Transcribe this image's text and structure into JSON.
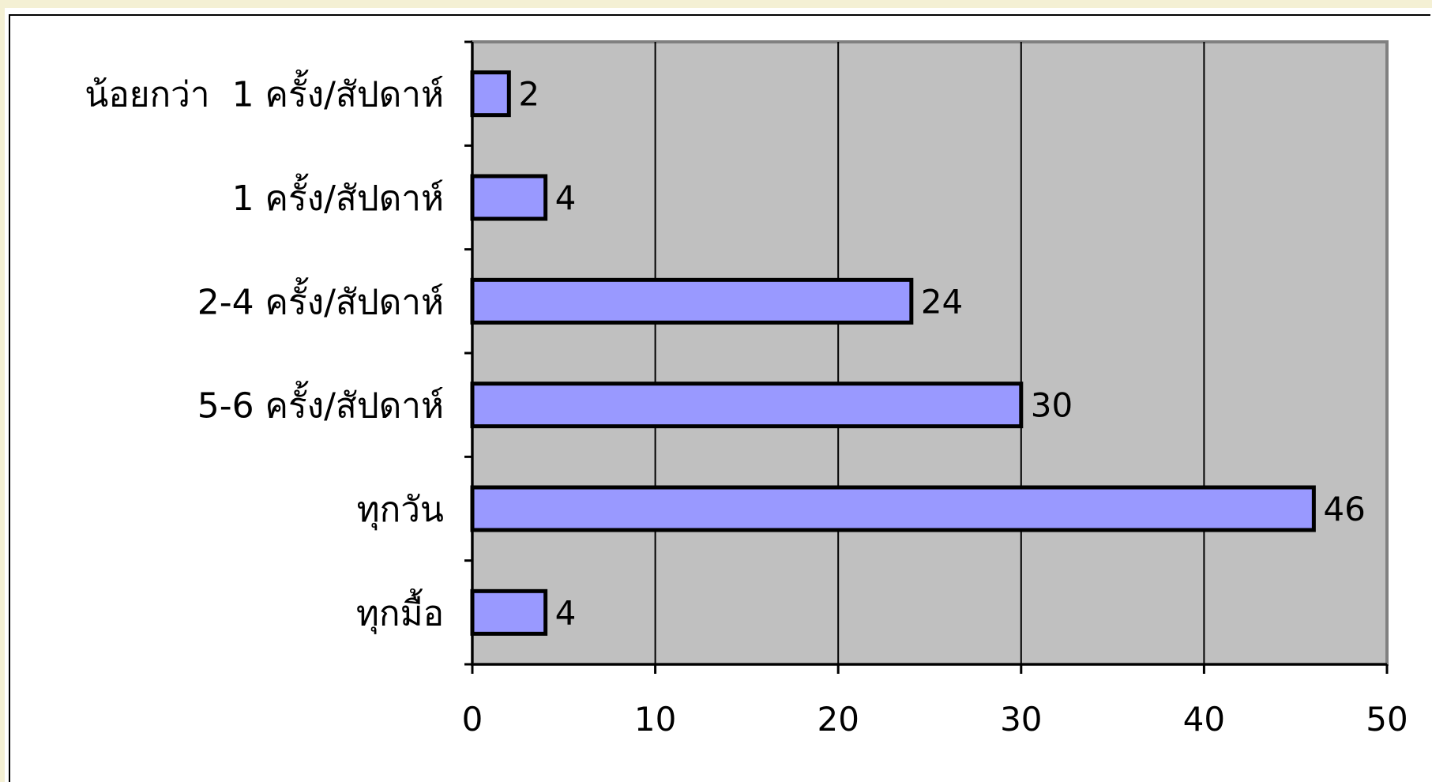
{
  "chart_data": {
    "type": "bar",
    "orientation": "horizontal",
    "categories": [
      "น้อยกว่า  1 ครั้ง/สัปดาห์",
      "1 ครั้ง/สัปดาห์",
      "2-4 ครั้ง/สัปดาห์",
      "5-6 ครั้ง/สัปดาห์",
      "ทุกวัน",
      "ทุกมื้อ"
    ],
    "values": [
      2,
      4,
      24,
      30,
      46,
      4
    ],
    "data_labels": [
      "2",
      "4",
      "24",
      "30",
      "46",
      "4"
    ],
    "xlim": [
      0,
      50
    ],
    "x_ticks": [
      0,
      10,
      20,
      30,
      40,
      50
    ],
    "x_tick_labels": [
      "0",
      "10",
      "20",
      "30",
      "40",
      "50"
    ],
    "grid": "vertical",
    "legend": "none",
    "colors": {
      "bar_fill": "#9999ff",
      "bar_stroke": "#000000",
      "plot_background": "#c0c0c0",
      "plot_border": "#808080"
    }
  }
}
